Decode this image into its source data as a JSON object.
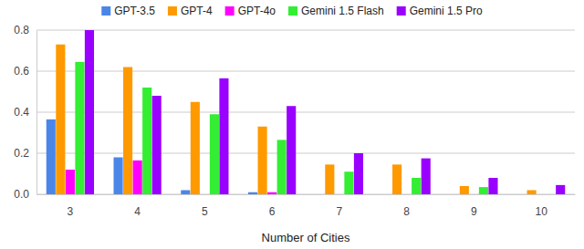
{
  "chart_data": {
    "type": "bar",
    "x_label": "Number of Cities",
    "categories": [
      "3",
      "4",
      "5",
      "6",
      "7",
      "8",
      "9",
      "10"
    ],
    "series": [
      {
        "name": "GPT-3.5",
        "color": "#4a86e8",
        "values": [
          0.365,
          0.18,
          0.02,
          0.01,
          0,
          0,
          0,
          0
        ]
      },
      {
        "name": "GPT-4",
        "color": "#ff9900",
        "values": [
          0.73,
          0.62,
          0.45,
          0.33,
          0.145,
          0.145,
          0.04,
          0.02
        ]
      },
      {
        "name": "GPT-4o",
        "color": "#ff00ff",
        "values": [
          0.12,
          0.165,
          0,
          0.01,
          0,
          0,
          0,
          0
        ]
      },
      {
        "name": "Gemini 1.5 Flash",
        "color": "#33ee33",
        "values": [
          0.645,
          0.52,
          0.39,
          0.265,
          0.11,
          0.08,
          0.035,
          0
        ]
      },
      {
        "name": "Gemini 1.5 Pro",
        "color": "#9900ff",
        "values": [
          0.8,
          0.48,
          0.565,
          0.43,
          0.2,
          0.175,
          0.08,
          0.045
        ]
      }
    ],
    "ylim": [
      0,
      0.8
    ],
    "yticks": [
      {
        "value": 0,
        "label": "0.0"
      },
      0.2,
      0.4,
      0.6,
      0.8
    ],
    "grid": true,
    "legend": "top"
  }
}
